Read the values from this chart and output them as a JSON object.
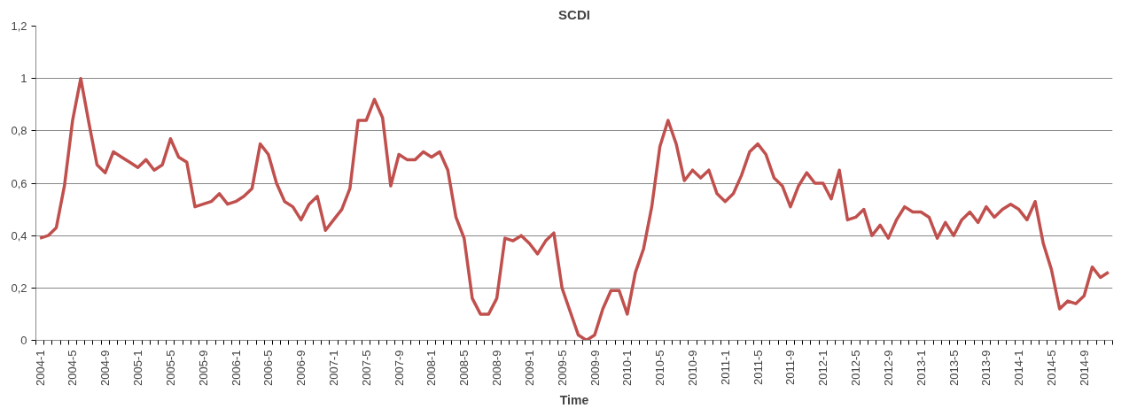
{
  "chart_data": {
    "type": "line",
    "title": "SCDI",
    "xlabel": "Time",
    "categories": [
      "2004-1",
      null,
      null,
      null,
      "2004-5",
      null,
      null,
      null,
      "2004-9",
      null,
      null,
      null,
      "2005-1",
      null,
      null,
      null,
      "2005-5",
      null,
      null,
      null,
      "2005-9",
      null,
      null,
      null,
      "2006-1",
      null,
      null,
      null,
      "2006-5",
      null,
      null,
      null,
      "2006-9",
      null,
      null,
      null,
      "2007-1",
      null,
      null,
      null,
      "2007-5",
      null,
      null,
      null,
      "2007-9",
      null,
      null,
      null,
      "2008-1",
      null,
      null,
      null,
      "2008-5",
      null,
      null,
      null,
      "2008-9",
      null,
      null,
      null,
      "2009-1",
      null,
      null,
      null,
      "2009-5",
      null,
      null,
      null,
      "2009-9",
      null,
      null,
      null,
      "2010-1",
      null,
      null,
      null,
      "2010-5",
      null,
      null,
      null,
      "2010-9",
      null,
      null,
      null,
      "2011-1",
      null,
      null,
      null,
      "2011-5",
      null,
      null,
      null,
      "2011-9",
      null,
      null,
      null,
      "2012-1",
      null,
      null,
      null,
      "2012-5",
      null,
      null,
      null,
      "2012-9",
      null,
      null,
      null,
      "2013-1",
      null,
      null,
      null,
      "2013-5",
      null,
      null,
      null,
      "2013-9",
      null,
      null,
      null,
      "2014-1",
      null,
      null,
      null,
      "2014-5",
      null,
      null,
      null,
      "2014-9",
      null,
      null,
      null
    ],
    "series": [
      {
        "color": "#c0504d",
        "values": [
          0.39,
          0.4,
          0.43,
          0.59,
          0.84,
          1.0,
          0.83,
          0.67,
          0.64,
          0.72,
          0.7,
          0.68,
          0.66,
          0.69,
          0.65,
          0.67,
          0.77,
          0.7,
          0.68,
          0.51,
          0.52,
          0.53,
          0.56,
          0.52,
          0.53,
          0.55,
          0.58,
          0.75,
          0.71,
          0.6,
          0.53,
          0.51,
          0.46,
          0.52,
          0.55,
          0.42,
          0.46,
          0.5,
          0.58,
          0.84,
          0.84,
          0.92,
          0.85,
          0.59,
          0.71,
          0.69,
          0.69,
          0.72,
          0.7,
          0.72,
          0.65,
          0.47,
          0.39,
          0.16,
          0.1,
          0.1,
          0.16,
          0.39,
          0.38,
          0.4,
          0.37,
          0.33,
          0.38,
          0.41,
          0.2,
          0.11,
          0.02,
          0.0,
          0.02,
          0.12,
          0.19,
          0.19,
          0.1,
          0.26,
          0.35,
          0.51,
          0.74,
          0.84,
          0.75,
          0.61,
          0.65,
          0.62,
          0.65,
          0.56,
          0.53,
          0.56,
          0.63,
          0.72,
          0.75,
          0.71,
          0.62,
          0.59,
          0.51,
          0.59,
          0.64,
          0.6,
          0.6,
          0.54,
          0.65,
          0.46,
          0.47,
          0.5,
          0.4,
          0.44,
          0.39,
          0.46,
          0.51,
          0.49,
          0.49,
          0.47,
          0.39,
          0.45,
          0.4,
          0.46,
          0.49,
          0.45,
          0.51,
          0.47,
          0.5,
          0.52,
          0.5,
          0.46,
          0.53,
          0.37,
          0.27,
          0.12,
          0.15,
          0.14,
          0.17,
          0.28,
          0.24,
          0.26
        ]
      }
    ],
    "ylim": [
      0,
      1.2
    ],
    "yticks": [
      0,
      {
        "value": 0.2,
        "label": "0,2"
      },
      {
        "value": 0.4,
        "label": "0,4"
      },
      {
        "value": 0.6,
        "label": "0,6"
      },
      {
        "value": 0.8,
        "label": "0,8"
      },
      1,
      {
        "value": 1.2,
        "label": "1,2"
      }
    ],
    "grid": "y",
    "marker": "none",
    "line_style": "solid"
  }
}
